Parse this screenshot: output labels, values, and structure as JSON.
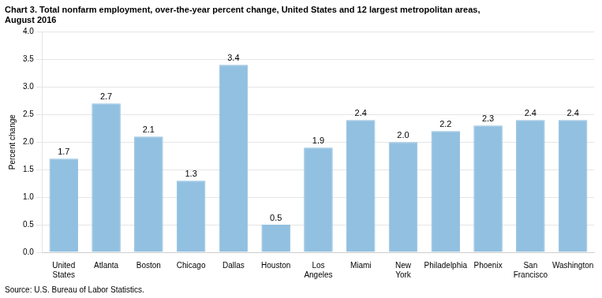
{
  "chart_data": {
    "type": "bar",
    "title": [
      "Chart 3. Total nonfarm employment, over-the-year percent change, United States and 12 largest metropolitan areas,",
      "August 2016"
    ],
    "y_label": "Percent change",
    "source": "Source: U.S. Bureau of Labor Statistics.",
    "categories": [
      "United\nStates",
      "Atlanta",
      "Boston",
      "Chicago",
      "Dallas",
      "Houston",
      "Los\nAngeles",
      "Miami",
      "New\nYork",
      "Philadelphia",
      "Phoenix",
      "San\nFrancisco",
      "Washington"
    ],
    "values": [
      1.7,
      2.7,
      2.1,
      1.3,
      3.4,
      0.5,
      1.9,
      2.4,
      2.0,
      2.2,
      2.3,
      2.4,
      2.4
    ],
    "value_labels": [
      "1.7",
      "2.7",
      "2.1",
      "1.3",
      "3.4",
      "0.5",
      "1.9",
      "2.4",
      "2.0",
      "2.2",
      "2.3",
      "2.4",
      "2.4"
    ],
    "color": "#92c0e0",
    "ylim": [
      0.0,
      4.0
    ],
    "yticks": [
      {
        "value": 0.0,
        "label": "0.0"
      },
      {
        "value": 0.5,
        "label": "0.5"
      },
      {
        "value": 1.0,
        "label": "1.0"
      },
      {
        "value": 1.5,
        "label": "1.5"
      },
      {
        "value": 2.0,
        "label": "2.0"
      },
      {
        "value": 2.5,
        "label": "2.5"
      },
      {
        "value": 3.0,
        "label": "3.0"
      },
      {
        "value": 3.5,
        "label": "3.5"
      },
      {
        "value": 4.0,
        "label": "4.0"
      }
    ],
    "grid": true,
    "data_labels": true
  }
}
